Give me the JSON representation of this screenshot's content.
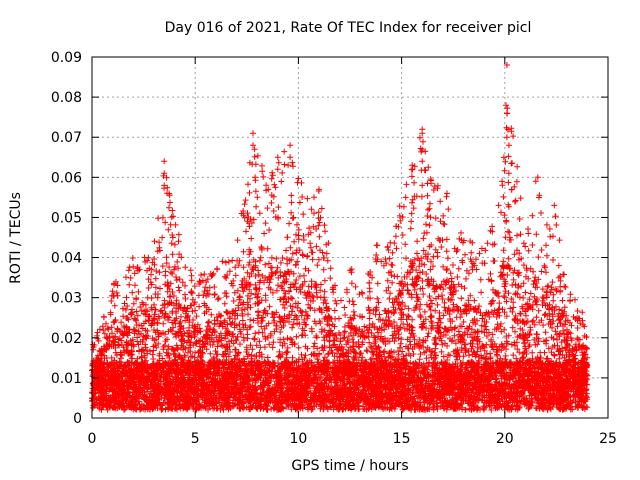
{
  "chart_data": {
    "type": "scatter",
    "title": "Day 016 of 2021, Rate Of TEC Index for receiver picl",
    "xlabel": "GPS time / hours",
    "ylabel": "ROTI / TECUs",
    "xlim": [
      0,
      25
    ],
    "ylim": [
      0,
      0.09
    ],
    "x_ticks": [
      "0",
      "5",
      "10",
      "15",
      "20",
      "25"
    ],
    "y_ticks": [
      "0",
      "0.01",
      "0.02",
      "0.03",
      "0.04",
      "0.05",
      "0.06",
      "0.07",
      "0.08",
      "0.09"
    ],
    "grid": true,
    "marker": "+",
    "series_color": "#ff0000",
    "x_range_of_data": [
      0,
      24
    ],
    "envelope": {
      "description_hours": [
        0,
        1,
        2,
        3,
        3.5,
        4,
        5,
        6,
        7,
        7.8,
        8.5,
        9,
        9.6,
        10.5,
        11,
        12,
        12.5,
        13,
        13.7,
        14.5,
        15,
        16,
        17,
        17.3,
        18,
        19,
        19.8,
        20.1,
        21,
        21.5,
        22,
        22.5,
        23,
        24
      ],
      "peak_roti": [
        0.018,
        0.033,
        0.041,
        0.043,
        0.064,
        0.049,
        0.035,
        0.038,
        0.043,
        0.071,
        0.061,
        0.065,
        0.068,
        0.054,
        0.057,
        0.028,
        0.04,
        0.031,
        0.043,
        0.044,
        0.055,
        0.072,
        0.055,
        0.057,
        0.046,
        0.043,
        0.053,
        0.088,
        0.044,
        0.059,
        0.053,
        0.052,
        0.033,
        0.025
      ]
    },
    "notable_points": [
      {
        "x": 3.5,
        "y": 0.064
      },
      {
        "x": 3.5,
        "y": 0.061
      },
      {
        "x": 3.5,
        "y": 0.058
      },
      {
        "x": 7.8,
        "y": 0.071
      },
      {
        "x": 7.8,
        "y": 0.068
      },
      {
        "x": 7.9,
        "y": 0.06
      },
      {
        "x": 9.0,
        "y": 0.065
      },
      {
        "x": 9.0,
        "y": 0.062
      },
      {
        "x": 9.6,
        "y": 0.068
      },
      {
        "x": 9.6,
        "y": 0.065
      },
      {
        "x": 9.5,
        "y": 0.063
      },
      {
        "x": 11.0,
        "y": 0.057
      },
      {
        "x": 16.0,
        "y": 0.072
      },
      {
        "x": 16.0,
        "y": 0.071
      },
      {
        "x": 16.0,
        "y": 0.064
      },
      {
        "x": 16.0,
        "y": 0.058
      },
      {
        "x": 17.2,
        "y": 0.056
      },
      {
        "x": 20.1,
        "y": 0.088
      },
      {
        "x": 20.1,
        "y": 0.076
      },
      {
        "x": 20.1,
        "y": 0.07
      },
      {
        "x": 20.2,
        "y": 0.068
      },
      {
        "x": 20.2,
        "y": 0.061
      },
      {
        "x": 21.6,
        "y": 0.06
      },
      {
        "x": 21.5,
        "y": 0.059
      },
      {
        "x": 19.7,
        "y": 0.053
      },
      {
        "x": 22.4,
        "y": 0.053
      },
      {
        "x": 15.2,
        "y": 0.055
      }
    ]
  }
}
